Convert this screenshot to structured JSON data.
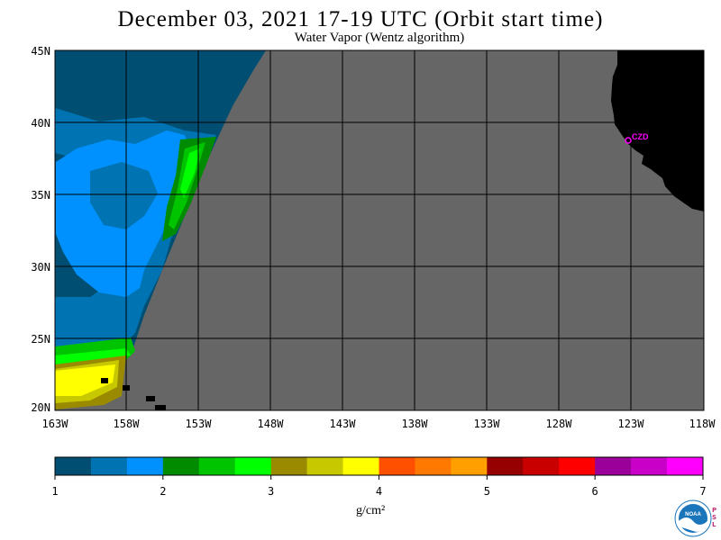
{
  "title": "December 03, 2021  17-19 UTC  (Orbit start time)",
  "subtitle": "Water Vapor (Wentz algorithm)",
  "map": {
    "lat_labels": [
      "45N",
      "40N",
      "35N",
      "30N",
      "25N",
      "20N"
    ],
    "lon_labels": [
      "163W",
      "158W",
      "153W",
      "148W",
      "143W",
      "138W",
      "133W",
      "128W",
      "123W",
      "118W"
    ],
    "station_label": "CZD",
    "colors": {
      "no_data": "#666666",
      "land": "#000000",
      "grid": "#000000",
      "station": "#ff00ff"
    }
  },
  "colorbar": {
    "tick_labels": [
      "1",
      "2",
      "3",
      "4",
      "5",
      "6",
      "7"
    ],
    "units": "g/cm²",
    "colors": [
      "#004f73",
      "#0073b2",
      "#0091ff",
      "#008b00",
      "#00c400",
      "#00ff00",
      "#998a00",
      "#c8c800",
      "#ffff00",
      "#ff5000",
      "#ff7800",
      "#ffa000",
      "#960000",
      "#c80000",
      "#ff0000",
      "#9b009b",
      "#c800c8",
      "#ff00ff"
    ]
  },
  "logo": {
    "name": "NOAA",
    "side_text": "PSL"
  }
}
